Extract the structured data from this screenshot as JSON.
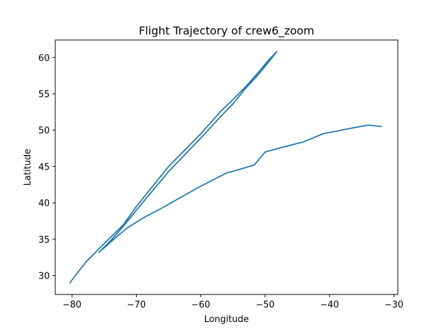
{
  "chart_data": {
    "type": "line",
    "title": "Flight Trajectory of crew6_zoom",
    "xlabel": "Longitude",
    "ylabel": "Latitude",
    "xlim": [
      -82.6,
      -29.4
    ],
    "ylim": [
      27.4,
      62.4
    ],
    "xticks": [
      -80,
      -70,
      -60,
      -50,
      -40,
      -30
    ],
    "xtick_labels": [
      "−80",
      "−70",
      "−60",
      "−50",
      "−40",
      "−30"
    ],
    "yticks": [
      30,
      35,
      40,
      45,
      50,
      55,
      60
    ],
    "ytick_labels": [
      "30",
      "35",
      "40",
      "45",
      "50",
      "55",
      "60"
    ],
    "grid": false,
    "legend": "none",
    "colors": {
      "line": "#1f77b4",
      "axes": "#000000",
      "background": "#ffffff"
    },
    "series": [
      {
        "points": [
          [
            -80.3,
            29.0
          ],
          [
            -79.5,
            30.0
          ],
          [
            -77.7,
            32.0
          ],
          [
            -76.0,
            33.5
          ],
          [
            -74.3,
            35.0
          ],
          [
            -72.0,
            37.0
          ],
          [
            -70.0,
            39.5
          ],
          [
            -65.0,
            45.0
          ],
          [
            -60.0,
            49.5
          ],
          [
            -57.0,
            52.5
          ],
          [
            -55.0,
            54.2
          ],
          [
            -53.0,
            56.0
          ],
          [
            -51.0,
            58.0
          ],
          [
            -49.5,
            59.6
          ],
          [
            -48.2,
            60.8
          ],
          [
            -49.0,
            59.9
          ],
          [
            -51.0,
            57.7
          ],
          [
            -53.0,
            55.8
          ],
          [
            -55.0,
            53.6
          ],
          [
            -57.0,
            51.8
          ],
          [
            -60.0,
            48.9
          ],
          [
            -65.0,
            44.3
          ],
          [
            -70.0,
            39.0
          ],
          [
            -72.0,
            36.8
          ],
          [
            -74.0,
            34.8
          ],
          [
            -75.8,
            33.2
          ],
          [
            -73.5,
            35.0
          ],
          [
            -71.5,
            36.5
          ],
          [
            -69.0,
            37.9
          ],
          [
            -66.0,
            39.3
          ],
          [
            -63.0,
            40.8
          ],
          [
            -60.0,
            42.3
          ],
          [
            -58.0,
            43.2
          ],
          [
            -56.0,
            44.1
          ],
          [
            -54.0,
            44.6
          ],
          [
            -51.7,
            45.2
          ],
          [
            -50.0,
            47.0
          ],
          [
            -47.5,
            47.6
          ],
          [
            -44.0,
            48.4
          ],
          [
            -41.0,
            49.5
          ],
          [
            -37.0,
            50.2
          ],
          [
            -34.0,
            50.7
          ],
          [
            -32.0,
            50.5
          ]
        ]
      }
    ]
  }
}
